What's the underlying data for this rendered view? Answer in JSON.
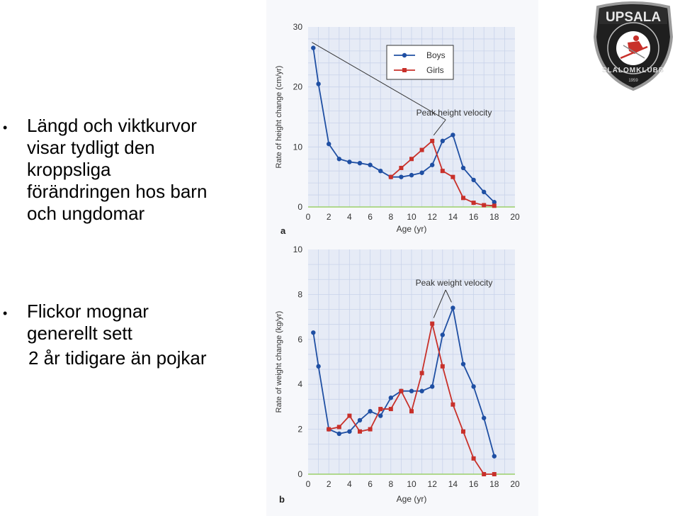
{
  "slide": {
    "bullet1_lines": [
      "Längd och viktkurvor",
      "visar tydligt den",
      "kroppsliga",
      "förändringen hos barn",
      "och ungdomar"
    ],
    "bullet2_lines": [
      "Flickor mognar",
      "generellt sett",
      "2 år tidigare än pojkar"
    ]
  },
  "logo": {
    "top_text": "UPSALA",
    "ring_text": "SLALOMKLUBB",
    "year": "1959",
    "colors": {
      "shield": "#1f1f1f",
      "rim": "#9a9a9a",
      "accent": "#c8302a"
    }
  },
  "colors": {
    "boys": "#1f4fa3",
    "girls": "#c8302a",
    "grid": "#c9d3ea",
    "bg": "#e6ebf6",
    "baseline": "#9bd06a"
  },
  "chart_data": [
    {
      "type": "line",
      "panel_label": "a",
      "xlabel": "Age (yr)",
      "ylabel": "Rate of height change (cm/yr)",
      "xlim": [
        0,
        20
      ],
      "ylim": [
        0,
        30
      ],
      "xticks": [
        "0",
        "2",
        "4",
        "6",
        "8",
        "10",
        "12",
        "14",
        "16",
        "18",
        "20"
      ],
      "yticks": [
        "0",
        "10",
        "20",
        "30"
      ],
      "legend": "top-right",
      "annotation": "Peak height velocity",
      "series": [
        {
          "name": "Boys",
          "marker": "circle",
          "x": [
            0.5,
            1,
            2,
            3,
            4,
            5,
            6,
            7,
            8,
            9,
            10,
            11,
            12,
            13,
            14,
            15,
            16,
            17,
            18
          ],
          "y": [
            26.5,
            20.5,
            10.5,
            8,
            7.5,
            7.3,
            7,
            6,
            5,
            5,
            5.3,
            5.7,
            7,
            11,
            12,
            6.5,
            4.5,
            2.5,
            0.8
          ]
        },
        {
          "name": "Girls",
          "marker": "square",
          "x": [
            8,
            9,
            10,
            11,
            12,
            13,
            14,
            15,
            16,
            17,
            18
          ],
          "y": [
            5,
            6.5,
            8,
            9.5,
            11,
            6,
            5,
            1.5,
            0.7,
            0.3,
            0.2
          ]
        }
      ]
    },
    {
      "type": "line",
      "panel_label": "b",
      "xlabel": "Age (yr)",
      "ylabel": "Rate of weight change (kg/yr)",
      "xlim": [
        0,
        20
      ],
      "ylim": [
        0,
        10
      ],
      "xticks": [
        "0",
        "2",
        "4",
        "6",
        "8",
        "10",
        "12",
        "14",
        "16",
        "18",
        "20"
      ],
      "yticks": [
        "0",
        "2",
        "4",
        "6",
        "8",
        "10"
      ],
      "annotation": "Peak weight velocity",
      "series": [
        {
          "name": "Boys",
          "marker": "circle",
          "x": [
            0.5,
            1,
            2,
            3,
            4,
            5,
            6,
            7,
            8,
            9,
            10,
            11,
            12,
            13,
            14,
            15,
            16,
            17,
            18
          ],
          "y": [
            6.3,
            4.8,
            2,
            1.8,
            1.9,
            2.4,
            2.8,
            2.6,
            3.4,
            3.7,
            3.7,
            3.7,
            3.9,
            6.2,
            7.4,
            4.9,
            3.9,
            2.5,
            0.8
          ]
        },
        {
          "name": "Girls",
          "marker": "square",
          "x": [
            2,
            3,
            4,
            5,
            6,
            7,
            8,
            9,
            10,
            11,
            12,
            13,
            14,
            15,
            16,
            17,
            18
          ],
          "y": [
            2,
            2.1,
            2.6,
            1.9,
            2,
            2.9,
            2.9,
            3.7,
            2.8,
            4.5,
            6.7,
            4.8,
            3.1,
            1.9,
            0.7,
            0,
            0
          ]
        }
      ]
    }
  ]
}
